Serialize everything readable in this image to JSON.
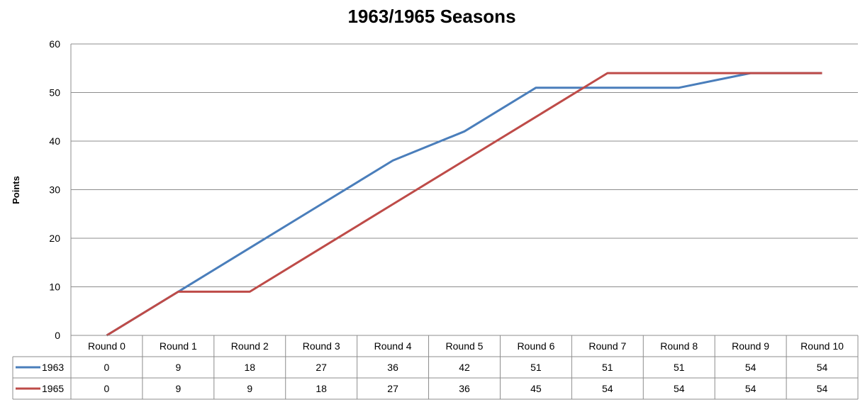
{
  "chart_data": {
    "type": "line",
    "title": "1963/1965 Seasons",
    "ylabel": "Points",
    "xlabel": "",
    "ylim": [
      0,
      60
    ],
    "yticks": [
      0,
      10,
      20,
      30,
      40,
      50,
      60
    ],
    "grid": true,
    "legend": "data-table",
    "categories": [
      "Round 0",
      "Round 1",
      "Round 2",
      "Round 3",
      "Round 4",
      "Round 5",
      "Round 6",
      "Round 7",
      "Round 8",
      "Round 9",
      "Round 10"
    ],
    "series": [
      {
        "name": "1963",
        "color": "#4a7ebb",
        "values": [
          0,
          9,
          18,
          27,
          36,
          42,
          51,
          51,
          51,
          54,
          54
        ]
      },
      {
        "name": "1965",
        "color": "#be4b48",
        "values": [
          0,
          9,
          9,
          18,
          27,
          36,
          45,
          54,
          54,
          54,
          54
        ]
      }
    ]
  }
}
